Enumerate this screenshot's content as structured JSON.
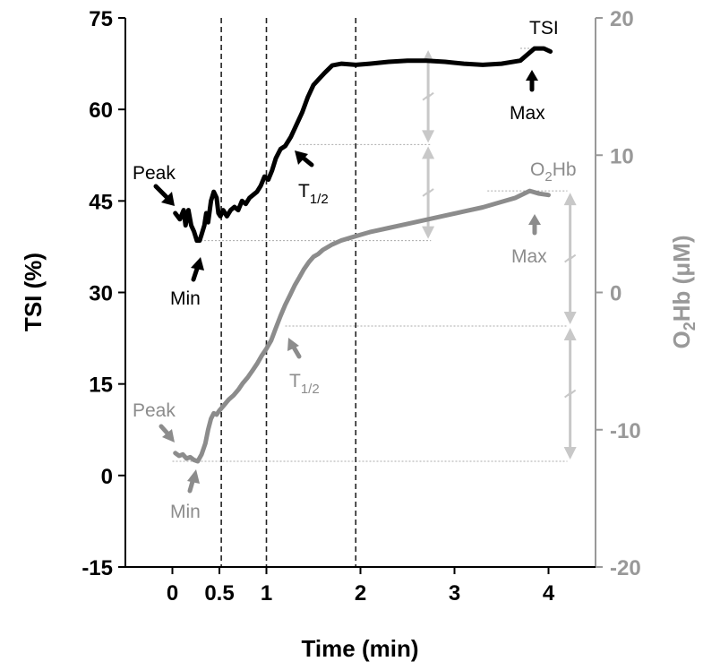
{
  "chart_data": {
    "type": "line",
    "xlabel": "Time (min)",
    "ylabel_left": "TSI (%)",
    "ylabel_right": {
      "main": "O",
      "sub": "2",
      "rest": "Hb (μM)"
    },
    "x_ticks": [
      {
        "value": 0,
        "label": "0"
      },
      {
        "value": 0.5,
        "label": "0.5"
      },
      {
        "value": 1,
        "label": "1"
      },
      {
        "value": 2,
        "label": "2"
      },
      {
        "value": 3,
        "label": "3"
      },
      {
        "value": 4,
        "label": "4"
      }
    ],
    "xlim": [
      -0.5,
      4.5
    ],
    "ylim_left": [
      -15,
      75
    ],
    "y_ticks_left": [
      -15,
      0,
      15,
      30,
      45,
      60,
      75
    ],
    "ylim_right": [
      -20,
      20
    ],
    "y_ticks_right": [
      -20,
      -10,
      0,
      10,
      20
    ],
    "vertical_dashed_lines_x": [
      0.52,
      1.0,
      1.95
    ],
    "colors": {
      "tsi": "#000000",
      "o2hb": "#8c8c8c",
      "arrow_grey": "#c8c8c8",
      "axis_right": "#999999"
    },
    "series": [
      {
        "name": "TSI",
        "axis": "left",
        "x": [
          0.03,
          0.08,
          0.12,
          0.14,
          0.17,
          0.2,
          0.23,
          0.26,
          0.29,
          0.31,
          0.34,
          0.36,
          0.38,
          0.41,
          0.44,
          0.47,
          0.49,
          0.51,
          0.54,
          0.58,
          0.62,
          0.66,
          0.7,
          0.74,
          0.78,
          0.82,
          0.86,
          0.9,
          0.94,
          0.98,
          1.02,
          1.06,
          1.1,
          1.15,
          1.2,
          1.26,
          1.32,
          1.38,
          1.44,
          1.5,
          1.56,
          1.62,
          1.7,
          1.8,
          1.95,
          2.1,
          2.3,
          2.5,
          2.7,
          2.9,
          3.1,
          3.3,
          3.5,
          3.7,
          3.85,
          3.95,
          4.02
        ],
        "values": [
          43,
          42,
          43.5,
          41,
          43.5,
          41,
          40,
          38.5,
          38.5,
          39.5,
          41,
          43,
          41.5,
          45,
          46.5,
          45.5,
          43,
          42.5,
          43.5,
          42.5,
          43.5,
          44,
          43.5,
          45,
          44.5,
          45.5,
          46,
          46.5,
          47.5,
          49,
          48.5,
          50,
          52,
          53.5,
          54,
          55.5,
          57.5,
          59.5,
          62,
          64,
          65,
          66,
          67.2,
          67.5,
          67.3,
          67.5,
          67.8,
          68,
          68,
          67.8,
          67.5,
          67.3,
          67.5,
          68,
          70,
          70,
          69.5
        ]
      },
      {
        "name": "O2Hb",
        "axis": "right",
        "x": [
          0.03,
          0.07,
          0.11,
          0.15,
          0.19,
          0.23,
          0.27,
          0.31,
          0.35,
          0.38,
          0.41,
          0.44,
          0.47,
          0.5,
          0.55,
          0.6,
          0.65,
          0.7,
          0.75,
          0.8,
          0.85,
          0.9,
          0.95,
          1.0,
          1.05,
          1.1,
          1.15,
          1.2,
          1.25,
          1.3,
          1.35,
          1.4,
          1.45,
          1.5,
          1.55,
          1.6,
          1.7,
          1.8,
          1.9,
          2.0,
          2.1,
          2.3,
          2.5,
          2.7,
          2.9,
          3.1,
          3.3,
          3.5,
          3.65,
          3.8,
          3.9,
          4.0
        ],
        "values": [
          -11.7,
          -11.9,
          -11.8,
          -12.1,
          -12.0,
          -12.2,
          -12.3,
          -11.8,
          -11.0,
          -10.0,
          -9.2,
          -8.8,
          -8.9,
          -8.6,
          -8.2,
          -7.8,
          -7.5,
          -7.1,
          -6.6,
          -6.2,
          -5.7,
          -5.2,
          -4.6,
          -4.1,
          -3.5,
          -2.6,
          -1.7,
          -0.9,
          -0.2,
          0.5,
          1.1,
          1.7,
          2.2,
          2.6,
          2.8,
          3.1,
          3.5,
          3.8,
          4.0,
          4.2,
          4.4,
          4.7,
          5.0,
          5.3,
          5.6,
          5.9,
          6.2,
          6.6,
          6.9,
          7.4,
          7.2,
          7.1
        ]
      }
    ],
    "annotations": {
      "tsi_label": "TSI",
      "tsi_peak": "Peak",
      "tsi_min": "Min",
      "tsi_half": {
        "main": "T",
        "sub": "1/2"
      },
      "tsi_max": "Max",
      "o2hb_label": {
        "main": "O",
        "sub": "2",
        "rest": "Hb"
      },
      "o2hb_peak": "Peak",
      "o2hb_min": "Min",
      "o2hb_half": {
        "main": "T",
        "sub": "1/2"
      },
      "o2hb_max": "Max"
    }
  }
}
